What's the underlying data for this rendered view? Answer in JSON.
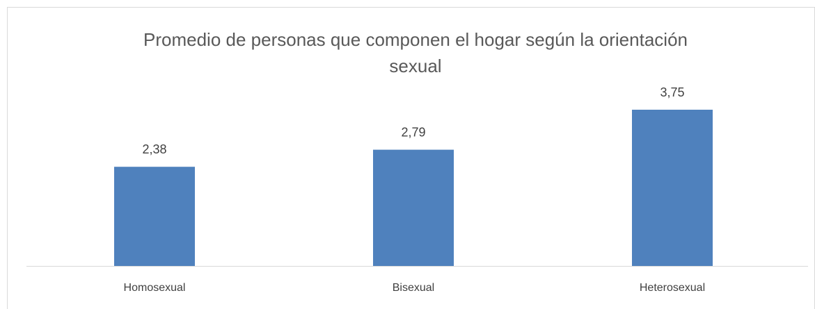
{
  "chart_data": {
    "type": "bar",
    "title": "Promedio de personas que componen el hogar según la orientación sexual",
    "categories": [
      "Homosexual",
      "Bisexual",
      "Heterosexual"
    ],
    "values": [
      2.38,
      2.79,
      3.75
    ],
    "value_labels": [
      "2,38",
      "2,79",
      "3,75"
    ],
    "color": "#4f81bd"
  }
}
